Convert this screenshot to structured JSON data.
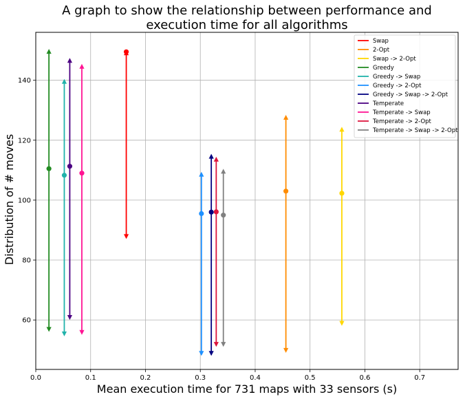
{
  "chart_data": {
    "type": "errorbar",
    "title_lines": [
      "A graph to show the relationship between performance and",
      "execution time for all algorithms"
    ],
    "xlabel": "Mean execution time for 731 maps with 33 sensors (s)",
    "ylabel": "Distribution of # moves",
    "xlim": [
      0,
      0.77
    ],
    "ylim": [
      43.5,
      156
    ],
    "xticks": [
      0.0,
      0.1,
      0.2,
      0.3,
      0.4,
      0.5,
      0.6,
      0.7
    ],
    "xtick_labels": [
      "0.0",
      "0.1",
      "0.2",
      "0.3",
      "0.4",
      "0.5",
      "0.6",
      "0.7"
    ],
    "yticks": [
      60,
      80,
      100,
      120,
      140
    ],
    "ytick_labels": [
      "60",
      "80",
      "100",
      "120",
      "140"
    ],
    "grid": true,
    "legend_position": "top-right",
    "series": [
      {
        "name": "Swap",
        "color": "#ff0000",
        "x": 0.165,
        "mean": 149.5,
        "max": 149.5,
        "min": 87.5
      },
      {
        "name": "2-Opt",
        "color": "#ff8c00",
        "x": 0.456,
        "mean": 103,
        "max": 128,
        "min": 49.5
      },
      {
        "name": "Swap -> 2-Opt",
        "color": "#ffd700",
        "x": 0.558,
        "mean": 102.3,
        "max": 124,
        "min": 58.5
      },
      {
        "name": "Greedy",
        "color": "#228b22",
        "x": 0.024,
        "mean": 110.5,
        "max": 150,
        "min": 56.5
      },
      {
        "name": "Greedy -> Swap",
        "color": "#20b2aa",
        "x": 0.052,
        "mean": 108.3,
        "max": 140,
        "min": 55
      },
      {
        "name": "Greedy -> 2-Opt",
        "color": "#1e90ff",
        "x": 0.302,
        "mean": 95.5,
        "max": 109,
        "min": 48.5
      },
      {
        "name": "Greedy -> Swap -> 2-Opt",
        "color": "#000080",
        "x": 0.32,
        "mean": 96,
        "max": 115,
        "min": 48.5
      },
      {
        "name": "Temperate",
        "color": "#4b0082",
        "x": 0.062,
        "mean": 111.3,
        "max": 147,
        "min": 60.5
      },
      {
        "name": "Temperate -> Swap",
        "color": "#ff1493",
        "x": 0.084,
        "mean": 109,
        "max": 145,
        "min": 55.5
      },
      {
        "name": "Temperate -> 2-Opt",
        "color": "#dc143c",
        "x": 0.329,
        "mean": 96.1,
        "max": 114,
        "min": 51.5
      },
      {
        "name": "Temperate -> Swap -> 2-Opt",
        "color": "#808080",
        "x": 0.342,
        "mean": 95,
        "max": 110,
        "min": 51.5
      }
    ]
  }
}
